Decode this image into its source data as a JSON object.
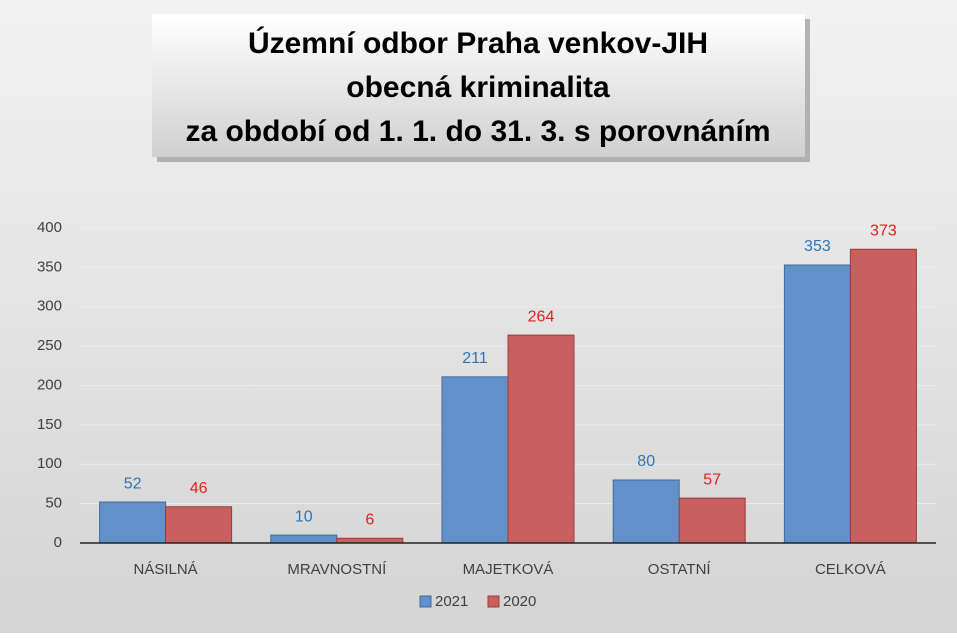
{
  "chart_data": {
    "type": "bar",
    "title": [
      "Územní odbor Praha venkov-JIH",
      "obecná kriminalita",
      "za období od 1. 1. do 31. 3. s porovnáním"
    ],
    "categories": [
      "NÁSILNÁ",
      "MRAVNOSTNÍ",
      "MAJETKOVÁ",
      "OSTATNÍ",
      "CELKOVÁ"
    ],
    "series": [
      {
        "name": "2021",
        "color": "#6290c8",
        "label_color": "#2e75b6",
        "values": [
          52,
          10,
          211,
          80,
          353
        ]
      },
      {
        "name": "2020",
        "color": "#c86060",
        "label_color": "#e0201e",
        "values": [
          46,
          6,
          264,
          57,
          373
        ]
      }
    ],
    "ylim": [
      0,
      400
    ],
    "yticks": [
      0,
      50,
      100,
      150,
      200,
      250,
      300,
      350,
      400
    ],
    "grid": true,
    "legend": "bottom"
  }
}
